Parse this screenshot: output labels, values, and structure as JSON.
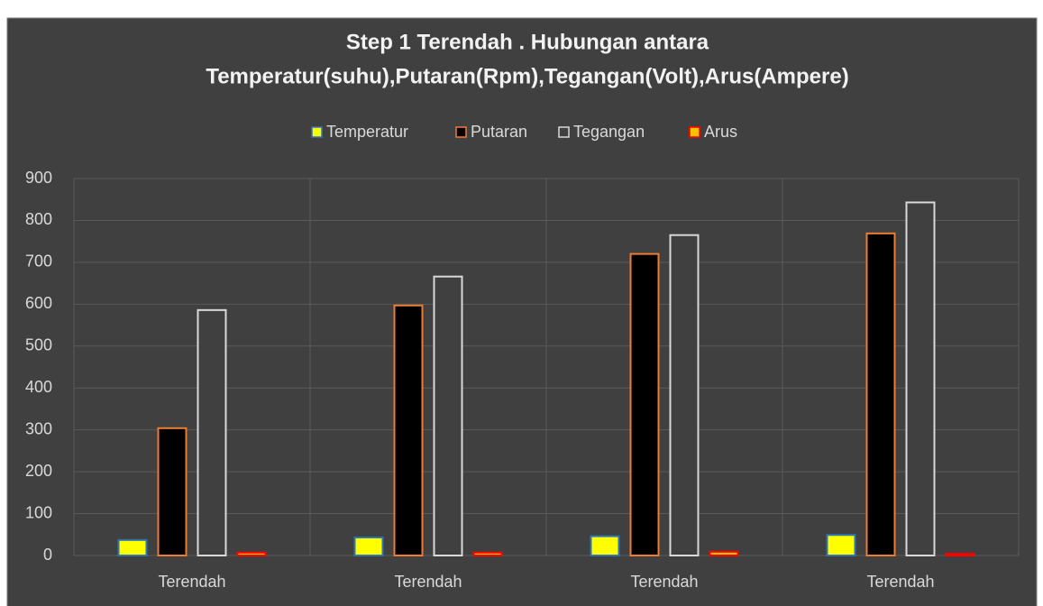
{
  "chart_data": {
    "type": "bar",
    "title": [
      "Step 1 Terendah . Hubungan antara",
      "Temperatur(suhu),Putaran(Rpm),Tegangan(Volt),Arus(Ampere)"
    ],
    "categories": [
      "Terendah",
      "Terendah",
      "Terendah",
      "Terendah"
    ],
    "series": [
      {
        "name": "Temperatur",
        "color": "#ffff00",
        "edgecolor": "#2e75b6",
        "values": [
          37,
          43,
          46,
          49
        ]
      },
      {
        "name": "Putaran",
        "color": "#000000",
        "edgecolor": "#ed7d31",
        "values": [
          304,
          597,
          720,
          769
        ]
      },
      {
        "name": "Tegangan",
        "color": "#404040",
        "edgecolor": "#d9d9d9",
        "values": [
          586,
          666,
          765,
          843
        ]
      },
      {
        "name": "Arus",
        "color": "#ffc000",
        "edgecolor": "#ff0000",
        "values": [
          7,
          7,
          9,
          4
        ]
      }
    ],
    "ylim": [
      0,
      900
    ],
    "yticks": [
      0,
      100,
      200,
      300,
      400,
      500,
      600,
      700,
      800,
      900
    ],
    "grid": true,
    "legend": "top"
  }
}
